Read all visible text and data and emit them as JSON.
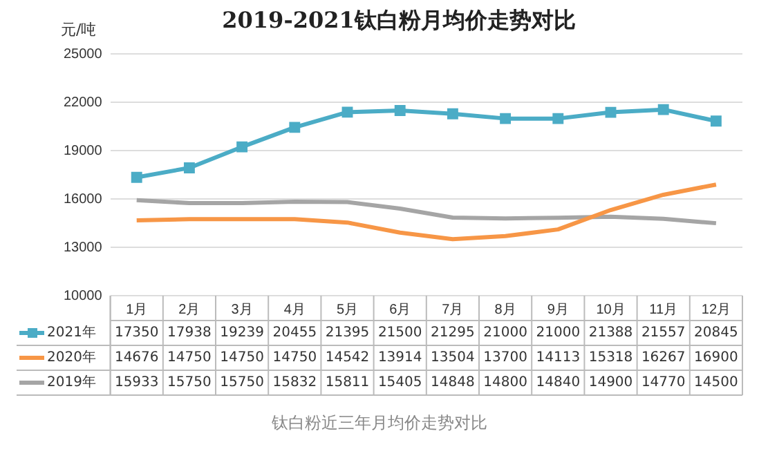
{
  "chart_data": {
    "type": "line",
    "title": "2019-2021钛白粉月均价走势对比",
    "ylabel": "元/吨",
    "categories": [
      "1月",
      "2月",
      "3月",
      "4月",
      "5月",
      "6月",
      "7月",
      "8月",
      "9月",
      "10月",
      "11月",
      "12月"
    ],
    "series": [
      {
        "name": "2021年",
        "color": "#4bacc6",
        "marker": "square",
        "values": [
          17350,
          17938,
          19239,
          20455,
          21395,
          21500,
          21295,
          21000,
          21000,
          21388,
          21557,
          20845
        ]
      },
      {
        "name": "2020年",
        "color": "#f79646",
        "marker": "none",
        "values": [
          14676,
          14750,
          14750,
          14750,
          14542,
          13914,
          13504,
          13700,
          14113,
          15318,
          16267,
          16900
        ]
      },
      {
        "name": "2019年",
        "color": "#a5a5a5",
        "marker": "none",
        "values": [
          15933,
          15750,
          15750,
          15832,
          15811,
          15405,
          14848,
          14800,
          14840,
          14900,
          14770,
          14500
        ]
      }
    ],
    "ylim": [
      10000,
      25000
    ],
    "yticks": [
      10000,
      13000,
      16000,
      19000,
      22000,
      25000
    ],
    "grid": "y",
    "legend": "bottom",
    "data_labels": true,
    "annotations": [
      "钛白粉近三年月均价走势对比"
    ]
  }
}
